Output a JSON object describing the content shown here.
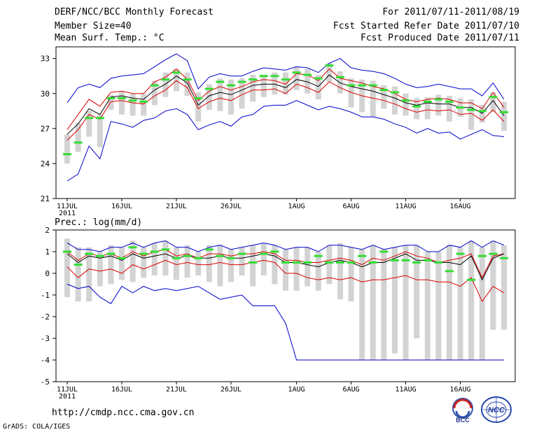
{
  "header": {
    "title": "DERF/NCC/BCC Monthly Forecast",
    "member_size": "Member Size=40",
    "variable1": "Mean Surf. Temp.: °C",
    "period": "For 2011/07/11-2011/08/19",
    "started": "Fcst Started Refer Date 2011/07/10",
    "produced": "Fcst Produced Date 2011/07/11"
  },
  "footer": {
    "url": "http://cmdp.ncc.cma.gov.cn",
    "grads": "GrADS: COLA/IGES",
    "logo1": "BCC",
    "logo2": "NCC"
  },
  "colors": {
    "box": "#d3d3d3",
    "median": "#33dd33",
    "mean": "#000000",
    "band": "#dd0000",
    "extreme": "#0000cc"
  },
  "chart_data": [
    {
      "type": "line",
      "title": "Mean Surf. Temp.: °C",
      "ylim": [
        21,
        34
      ],
      "yticks": [
        21,
        24,
        27,
        30,
        33
      ],
      "xlabels": [
        "11JUL",
        "16JUL",
        "21JUL",
        "26JUL",
        "1AUG",
        "6AUG",
        "11AUG",
        "16AUG"
      ],
      "xlabel_days": [
        0,
        5,
        10,
        15,
        21,
        26,
        31,
        36
      ],
      "year_label": "2011",
      "days": 40,
      "series": [
        {
          "name": "max",
          "values": [
            29.2,
            30.5,
            30.8,
            30.5,
            31.3,
            31.5,
            31.6,
            31.7,
            32.3,
            32.9,
            33.4,
            32.8,
            30.4,
            31.4,
            31.7,
            31.5,
            31.5,
            31.9,
            32.2,
            32.1,
            32.0,
            32.3,
            32.2,
            31.8,
            32.6,
            33.0,
            32.2,
            32.0,
            31.9,
            31.7,
            31.3,
            30.8,
            30.5,
            30.6,
            30.8,
            30.6,
            30.4,
            30.4,
            29.8,
            30.9,
            29.5
          ]
        },
        {
          "name": "upper",
          "values": [
            26.9,
            28.2,
            29.5,
            28.9,
            30.1,
            30.2,
            30.0,
            30.0,
            31.0,
            31.4,
            32.1,
            31.2,
            29.4,
            30.2,
            30.6,
            30.3,
            30.6,
            31.0,
            31.2,
            31.1,
            30.8,
            31.7,
            31.6,
            31.1,
            32.1,
            31.3,
            31.1,
            30.9,
            30.6,
            30.4,
            30.0,
            29.5,
            29.3,
            29.5,
            29.6,
            29.5,
            29.2,
            29.2,
            28.7,
            30.1,
            28.8
          ]
        },
        {
          "name": "mean",
          "values": [
            26.5,
            27.4,
            28.7,
            28.2,
            29.7,
            29.8,
            29.6,
            29.5,
            30.3,
            30.8,
            31.5,
            30.9,
            29.0,
            29.8,
            30.1,
            29.9,
            30.3,
            30.7,
            30.8,
            30.8,
            30.5,
            31.2,
            31.0,
            30.6,
            31.6,
            30.9,
            30.6,
            30.4,
            30.2,
            29.9,
            29.6,
            29.2,
            29.0,
            29.2,
            29.1,
            29.1,
            28.8,
            28.8,
            28.3,
            29.4,
            28.1
          ]
        },
        {
          "name": "lower",
          "values": [
            26.0,
            26.9,
            28.2,
            27.8,
            29.3,
            29.4,
            29.2,
            29.1,
            29.8,
            30.3,
            31.1,
            30.5,
            28.7,
            29.3,
            29.6,
            29.4,
            29.9,
            30.3,
            30.3,
            30.4,
            30.0,
            30.8,
            30.5,
            30.1,
            31.0,
            30.5,
            30.1,
            29.8,
            29.6,
            29.4,
            29.1,
            28.7,
            28.4,
            28.6,
            28.5,
            28.6,
            28.2,
            28.3,
            27.7,
            28.6,
            27.6
          ]
        },
        {
          "name": "min",
          "values": [
            22.5,
            23.1,
            25.5,
            24.4,
            27.6,
            27.4,
            27.1,
            27.7,
            27.9,
            28.5,
            28.7,
            28.2,
            26.9,
            27.3,
            27.6,
            27.2,
            28.0,
            28.2,
            28.9,
            29.0,
            29.0,
            29.4,
            29.0,
            28.6,
            28.9,
            28.7,
            28.4,
            28.0,
            28.0,
            27.8,
            27.4,
            27.1,
            26.6,
            27.0,
            26.6,
            26.7,
            26.1,
            26.5,
            26.9,
            26.4,
            26.3
          ]
        },
        {
          "name": "median",
          "values": [
            24.8,
            25.8,
            27.9,
            27.9,
            29.6,
            29.6,
            29.4,
            29.3,
            30.7,
            31.2,
            31.8,
            31.2,
            29.6,
            30.4,
            31.0,
            30.7,
            31.0,
            31.2,
            31.5,
            31.5,
            31.2,
            31.8,
            31.6,
            31.3,
            32.4,
            31.4,
            30.7,
            30.7,
            30.7,
            30.3,
            30.1,
            29.4,
            28.9,
            29.3,
            29.5,
            29.3,
            28.8,
            28.6,
            28.5,
            29.7,
            28.4
          ]
        },
        {
          "name": "box_high",
          "values": [
            26.5,
            27.5,
            28.5,
            28.2,
            29.9,
            30.2,
            30.0,
            30.0,
            31.1,
            31.8,
            32.1,
            31.8,
            30.1,
            30.8,
            31.3,
            31.2,
            31.3,
            31.6,
            31.6,
            31.8,
            31.8,
            32.3,
            32.1,
            31.6,
            32.6,
            31.9,
            31.3,
            31.2,
            31.1,
            30.7,
            30.6,
            30.0,
            29.6,
            29.7,
            29.9,
            29.8,
            29.6,
            29.5,
            29.0,
            30.1,
            29.3
          ]
        },
        {
          "name": "box_low",
          "values": [
            24.0,
            25.0,
            26.3,
            25.4,
            28.6,
            28.2,
            28.1,
            28.1,
            29.0,
            29.7,
            30.2,
            29.8,
            27.6,
            28.6,
            28.5,
            28.2,
            28.7,
            29.3,
            29.7,
            29.9,
            29.9,
            30.3,
            30.0,
            29.5,
            31.0,
            30.0,
            28.8,
            28.4,
            28.0,
            28.7,
            28.2,
            28.1,
            27.8,
            27.8,
            28.1,
            27.6,
            28.0,
            26.9,
            27.5,
            28.4,
            26.8
          ]
        }
      ]
    },
    {
      "type": "line",
      "title": "Prec.: log(mm/d)",
      "ylim": [
        -5,
        2
      ],
      "yticks": [
        -5,
        -4,
        -3,
        -2,
        -1,
        0,
        1,
        2
      ],
      "xlabels": [
        "11JUL",
        "16JUL",
        "21JUL",
        "26JUL",
        "1AUG",
        "6AUG",
        "11AUG",
        "16AUG"
      ],
      "xlabel_days": [
        0,
        5,
        10,
        15,
        21,
        26,
        31,
        36
      ],
      "year_label": "2011",
      "days": 40,
      "series": [
        {
          "name": "max",
          "values": [
            1.4,
            1.1,
            1.1,
            1.0,
            1.2,
            1.2,
            1.4,
            1.2,
            1.4,
            1.5,
            1.2,
            1.2,
            1.0,
            1.2,
            1.3,
            1.1,
            1.2,
            1.3,
            1.4,
            1.3,
            1.1,
            1.2,
            1.2,
            1.0,
            1.3,
            1.3,
            1.2,
            1.1,
            1.3,
            1.1,
            1.2,
            1.3,
            1.3,
            1.0,
            1.0,
            1.3,
            1.2,
            1.5,
            1.2,
            1.5,
            1.3
          ]
        },
        {
          "name": "upper",
          "values": [
            1.0,
            0.6,
            0.9,
            0.8,
            0.9,
            0.7,
            1.0,
            0.8,
            1.0,
            1.1,
            0.8,
            0.9,
            0.7,
            0.9,
            0.9,
            0.8,
            0.9,
            0.9,
            1.0,
            0.9,
            0.6,
            0.6,
            0.5,
            0.5,
            0.6,
            0.7,
            0.6,
            0.4,
            0.7,
            0.6,
            0.8,
            1.0,
            0.8,
            0.7,
            0.5,
            0.6,
            0.7,
            0.9,
            -0.2,
            0.8,
            0.9
          ]
        },
        {
          "name": "mean",
          "values": [
            0.9,
            0.5,
            0.8,
            0.7,
            0.8,
            0.6,
            0.9,
            0.7,
            0.8,
            0.9,
            0.7,
            0.8,
            0.7,
            0.7,
            0.8,
            0.7,
            0.7,
            0.8,
            0.9,
            0.8,
            0.5,
            0.5,
            0.4,
            0.3,
            0.5,
            0.6,
            0.5,
            0.3,
            0.5,
            0.5,
            0.7,
            0.9,
            0.6,
            0.6,
            0.5,
            0.5,
            0.4,
            0.8,
            -0.3,
            0.7,
            0.9
          ]
        },
        {
          "name": "lower",
          "values": [
            0.3,
            -0.2,
            0.2,
            0.1,
            0.2,
            0.0,
            0.4,
            0.2,
            0.4,
            0.6,
            0.4,
            0.5,
            0.4,
            0.4,
            0.5,
            0.4,
            0.4,
            0.5,
            0.6,
            0.5,
            0.0,
            0.0,
            -0.2,
            -0.3,
            -0.2,
            -0.3,
            -0.2,
            -0.4,
            -0.3,
            -0.3,
            -0.2,
            -0.1,
            -0.3,
            -0.3,
            -0.4,
            -0.4,
            -0.6,
            -0.2,
            -1.3,
            -0.6,
            -0.9
          ]
        },
        {
          "name": "min",
          "values": [
            -0.5,
            -0.7,
            -0.6,
            -1.1,
            -1.4,
            -0.6,
            -0.9,
            -0.6,
            -0.8,
            -0.7,
            -0.8,
            -0.7,
            -0.6,
            -0.9,
            -1.2,
            -1.1,
            -1.0,
            -1.5,
            -1.5,
            -1.5,
            -2.3,
            -4,
            -4,
            -4,
            -4,
            -4,
            -4,
            -4,
            -4,
            -4,
            -4,
            -4,
            -4,
            -4,
            -4,
            -4,
            -4,
            -4,
            -4,
            -4,
            -4
          ]
        },
        {
          "name": "median",
          "values": [
            1.0,
            0.4,
            0.9,
            0.8,
            0.9,
            0.7,
            1.2,
            0.9,
            1.0,
            1.1,
            0.7,
            0.8,
            0.7,
            1.1,
            0.8,
            0.7,
            0.9,
            0.5,
            0.9,
            1.0,
            0.5,
            0.5,
            0.5,
            0.8,
            0.5,
            0.5,
            0.5,
            0.8,
            0.5,
            1.0,
            0.6,
            0.6,
            0.5,
            0.6,
            0.5,
            0.1,
            0.9,
            -0.3,
            0.8,
            0.9,
            0.7
          ]
        },
        {
          "name": "box_high",
          "values": [
            1.6,
            1.2,
            1.2,
            1.0,
            1.3,
            1.2,
            1.5,
            1.2,
            1.4,
            1.5,
            1.2,
            1.3,
            1.0,
            1.3,
            1.3,
            1.1,
            1.2,
            1.3,
            1.4,
            1.3,
            1.1,
            1.2,
            1.2,
            1.0,
            1.3,
            1.4,
            1.2,
            1.1,
            1.3,
            1.1,
            1.2,
            1.3,
            1.3,
            1.0,
            1.0,
            1.3,
            1.2,
            1.5,
            1.2,
            1.5,
            1.3
          ]
        },
        {
          "name": "box_low",
          "values": [
            -1.1,
            -1.3,
            -1.3,
            -0.6,
            -0.5,
            -0.3,
            -0.4,
            -0.2,
            -0.1,
            -0.1,
            -0.3,
            -0.2,
            -0.1,
            -0.4,
            -0.6,
            -0.4,
            -0.1,
            -0.6,
            -0.1,
            -0.5,
            -0.8,
            -0.8,
            -0.6,
            -0.8,
            -0.5,
            -1.2,
            -1.3,
            -4,
            -4,
            -4,
            -3.7,
            -4,
            -3.0,
            -4,
            -4,
            -4,
            -4,
            -4,
            -4,
            -2.6,
            -2.6
          ]
        }
      ]
    }
  ],
  "panel2": {
    "title": "Prec.: log(mm/d)"
  }
}
